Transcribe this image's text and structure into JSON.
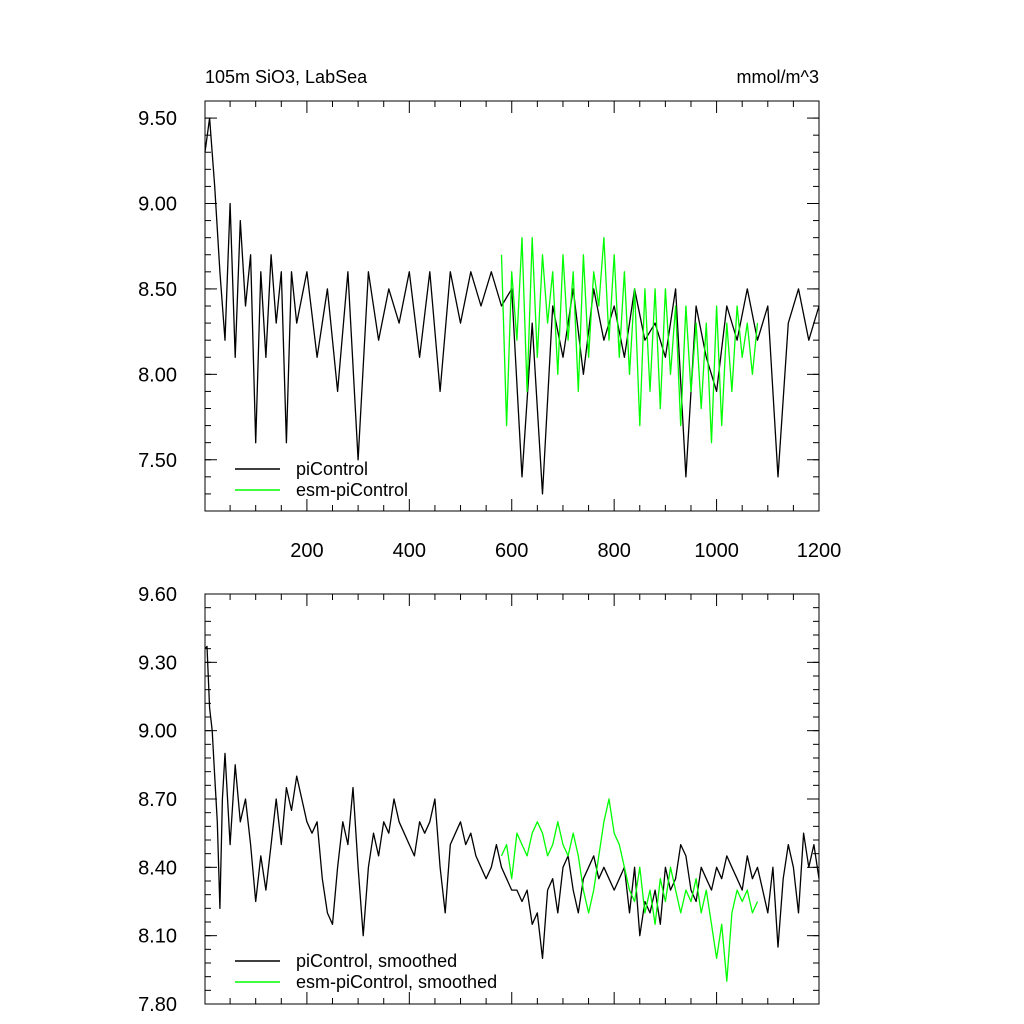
{
  "chart_data": [
    {
      "type": "line",
      "title": "105m SiO3, LabSea",
      "units": "mmol/m^3",
      "xlim": [
        1,
        1200
      ],
      "ylim": [
        7.2,
        9.6
      ],
      "yticks": [
        7.5,
        8.0,
        8.5,
        9.0,
        9.5
      ],
      "ytick_labels": [
        "7.50",
        "8.00",
        "8.50",
        "9.00",
        "9.50"
      ],
      "xticks": [
        200,
        400,
        600,
        800,
        1000,
        1200
      ],
      "xtick_labels": [
        "200",
        "400",
        "600",
        "800",
        "1000",
        "1200"
      ],
      "legend_position": "bottom-left",
      "series": [
        {
          "name": "piControl",
          "color": "#000000",
          "x": [
            1,
            10,
            20,
            30,
            40,
            50,
            60,
            70,
            80,
            90,
            100,
            110,
            120,
            130,
            140,
            150,
            160,
            170,
            180,
            200,
            220,
            240,
            260,
            280,
            300,
            320,
            340,
            360,
            380,
            400,
            420,
            440,
            460,
            480,
            500,
            520,
            540,
            560,
            580,
            600,
            620,
            640,
            660,
            680,
            700,
            720,
            740,
            760,
            780,
            800,
            820,
            840,
            860,
            880,
            900,
            920,
            940,
            960,
            980,
            1000,
            1020,
            1040,
            1060,
            1080,
            1100,
            1120,
            1140,
            1160,
            1180,
            1200
          ],
          "y": [
            9.3,
            9.5,
            9.1,
            8.6,
            8.2,
            9.0,
            8.1,
            8.9,
            8.4,
            8.7,
            7.6,
            8.6,
            8.1,
            8.7,
            8.3,
            8.6,
            7.6,
            8.6,
            8.3,
            8.6,
            8.1,
            8.5,
            7.9,
            8.6,
            7.5,
            8.6,
            8.2,
            8.5,
            8.3,
            8.6,
            8.1,
            8.6,
            7.9,
            8.6,
            8.3,
            8.6,
            8.4,
            8.6,
            8.4,
            8.5,
            7.4,
            8.3,
            7.3,
            8.4,
            8.1,
            8.5,
            8.0,
            8.5,
            8.2,
            8.4,
            8.1,
            8.5,
            8.2,
            8.3,
            8.1,
            8.5,
            7.4,
            8.4,
            8.1,
            7.9,
            8.4,
            8.2,
            8.5,
            8.2,
            8.4,
            7.4,
            8.3,
            8.5,
            8.2,
            8.4
          ]
        },
        {
          "name": "esm-piControl",
          "color": "#00ff00",
          "x": [
            580,
            590,
            600,
            610,
            620,
            630,
            640,
            650,
            660,
            670,
            680,
            690,
            700,
            710,
            720,
            730,
            740,
            750,
            760,
            770,
            780,
            790,
            800,
            810,
            820,
            830,
            840,
            850,
            860,
            870,
            880,
            890,
            900,
            910,
            920,
            930,
            940,
            950,
            960,
            970,
            980,
            990,
            1000,
            1010,
            1020,
            1030,
            1040,
            1050,
            1060,
            1070,
            1080
          ],
          "y": [
            8.7,
            7.7,
            8.6,
            8.2,
            8.8,
            7.9,
            8.8,
            8.1,
            8.7,
            8.3,
            8.6,
            8.0,
            8.7,
            8.2,
            8.6,
            7.9,
            8.7,
            8.1,
            8.6,
            8.4,
            8.8,
            8.2,
            8.7,
            8.1,
            8.6,
            8.0,
            8.5,
            7.7,
            8.5,
            7.9,
            8.5,
            7.8,
            8.5,
            8.0,
            8.4,
            7.7,
            8.4,
            7.9,
            8.3,
            7.8,
            8.3,
            7.6,
            8.4,
            7.7,
            8.3,
            7.9,
            8.4,
            8.1,
            8.3,
            8.0,
            8.3
          ]
        }
      ]
    },
    {
      "type": "line",
      "xlim": [
        1,
        1200
      ],
      "ylim": [
        7.8,
        9.6
      ],
      "yticks": [
        7.8,
        8.1,
        8.4,
        8.7,
        9.0,
        9.3,
        9.6
      ],
      "ytick_labels": [
        "7.80",
        "8.10",
        "8.40",
        "8.70",
        "9.00",
        "9.30",
        "9.60"
      ],
      "legend_position": "bottom-left",
      "series": [
        {
          "name": "piControl, smoothed",
          "color": "#000000",
          "x": [
            1,
            5,
            10,
            15,
            20,
            25,
            30,
            35,
            40,
            50,
            60,
            70,
            80,
            90,
            100,
            110,
            120,
            130,
            140,
            150,
            160,
            170,
            180,
            190,
            200,
            210,
            220,
            230,
            240,
            250,
            260,
            270,
            280,
            290,
            300,
            310,
            320,
            330,
            340,
            350,
            360,
            370,
            380,
            390,
            400,
            410,
            420,
            430,
            440,
            450,
            460,
            470,
            480,
            490,
            500,
            510,
            520,
            530,
            540,
            550,
            560,
            570,
            580,
            590,
            600,
            610,
            620,
            630,
            640,
            650,
            660,
            670,
            680,
            690,
            700,
            710,
            720,
            730,
            740,
            750,
            760,
            770,
            780,
            790,
            800,
            810,
            820,
            830,
            840,
            850,
            860,
            870,
            880,
            890,
            900,
            910,
            920,
            930,
            940,
            950,
            960,
            970,
            980,
            990,
            1000,
            1010,
            1020,
            1030,
            1040,
            1050,
            1060,
            1070,
            1080,
            1090,
            1100,
            1110,
            1120,
            1130,
            1140,
            1150,
            1160,
            1170,
            1180,
            1190,
            1200
          ],
          "y": [
            9.36,
            9.37,
            9.1,
            9.0,
            8.8,
            8.6,
            8.22,
            8.7,
            8.9,
            8.5,
            8.85,
            8.6,
            8.7,
            8.5,
            8.25,
            8.45,
            8.3,
            8.5,
            8.7,
            8.5,
            8.75,
            8.65,
            8.8,
            8.7,
            8.6,
            8.55,
            8.6,
            8.35,
            8.2,
            8.15,
            8.4,
            8.6,
            8.5,
            8.75,
            8.4,
            8.1,
            8.4,
            8.55,
            8.45,
            8.6,
            8.55,
            8.7,
            8.6,
            8.55,
            8.5,
            8.45,
            8.6,
            8.55,
            8.6,
            8.7,
            8.4,
            8.2,
            8.5,
            8.55,
            8.6,
            8.5,
            8.55,
            8.45,
            8.4,
            8.35,
            8.4,
            8.5,
            8.4,
            8.35,
            8.3,
            8.3,
            8.25,
            8.3,
            8.15,
            8.2,
            8.0,
            8.3,
            8.35,
            8.2,
            8.4,
            8.45,
            8.3,
            8.2,
            8.35,
            8.4,
            8.45,
            8.35,
            8.4,
            8.35,
            8.3,
            8.35,
            8.4,
            8.2,
            8.4,
            8.1,
            8.25,
            8.2,
            8.3,
            8.15,
            8.4,
            8.3,
            8.35,
            8.5,
            8.45,
            8.3,
            8.25,
            8.4,
            8.35,
            8.3,
            8.4,
            8.35,
            8.45,
            8.4,
            8.35,
            8.3,
            8.45,
            8.35,
            8.4,
            8.3,
            8.2,
            8.4,
            8.05,
            8.35,
            8.5,
            8.4,
            8.2,
            8.55,
            8.4,
            8.5,
            8.35
          ]
        },
        {
          "name": "esm-piControl, smoothed",
          "color": "#00ff00",
          "x": [
            580,
            590,
            600,
            610,
            620,
            630,
            640,
            650,
            660,
            670,
            680,
            690,
            700,
            710,
            720,
            730,
            740,
            750,
            760,
            770,
            780,
            790,
            800,
            810,
            820,
            830,
            840,
            850,
            860,
            870,
            880,
            890,
            900,
            910,
            920,
            930,
            940,
            950,
            960,
            970,
            980,
            990,
            1000,
            1010,
            1020,
            1030,
            1040,
            1050,
            1060,
            1070,
            1080
          ],
          "y": [
            8.45,
            8.5,
            8.35,
            8.55,
            8.5,
            8.45,
            8.55,
            8.6,
            8.55,
            8.45,
            8.5,
            8.6,
            8.5,
            8.45,
            8.55,
            8.45,
            8.3,
            8.2,
            8.3,
            8.45,
            8.6,
            8.7,
            8.55,
            8.5,
            8.4,
            8.3,
            8.25,
            8.4,
            8.2,
            8.3,
            8.15,
            8.35,
            8.25,
            8.4,
            8.3,
            8.2,
            8.3,
            8.25,
            8.35,
            8.2,
            8.3,
            8.15,
            8.0,
            8.15,
            7.9,
            8.2,
            8.3,
            8.25,
            8.3,
            8.2,
            8.25
          ]
        }
      ]
    }
  ]
}
